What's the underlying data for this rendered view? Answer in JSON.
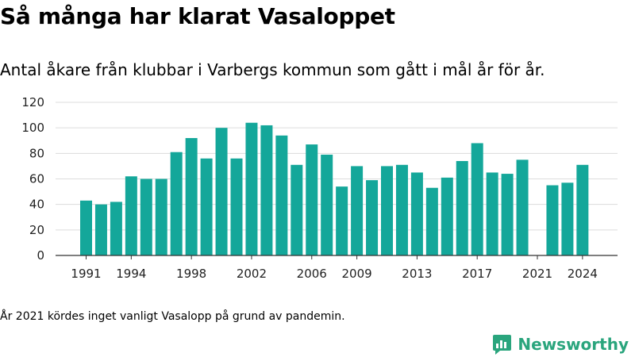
{
  "title": "Så många har klarat Vasaloppet",
  "subtitle": "Antal åkare från klubbar i Varbergs kommun som gått i mål år för år.",
  "footnote": "År 2021 kördes inget vanligt Vasalopp på grund av pandemin.",
  "brand": {
    "name": "Newsworthy",
    "icon": "newsworthy-logo-icon",
    "color": "#2aa57d"
  },
  "chart_data": {
    "type": "bar",
    "bar_color": "#14a79a",
    "grid": true,
    "ylim": [
      0,
      120
    ],
    "yticks": [
      0,
      20,
      40,
      60,
      80,
      100,
      120
    ],
    "xticks": [
      1991,
      1994,
      1998,
      2002,
      2006,
      2009,
      2013,
      2017,
      2021,
      2024
    ],
    "x": [
      1991,
      1992,
      1993,
      1994,
      1995,
      1996,
      1997,
      1998,
      1999,
      2000,
      2001,
      2002,
      2003,
      2004,
      2005,
      2006,
      2007,
      2008,
      2009,
      2010,
      2011,
      2012,
      2013,
      2014,
      2015,
      2016,
      2017,
      2018,
      2019,
      2020,
      2021,
      2022,
      2023,
      2024
    ],
    "values": [
      43,
      40,
      42,
      62,
      60,
      60,
      81,
      92,
      76,
      100,
      76,
      104,
      102,
      94,
      71,
      87,
      79,
      54,
      70,
      59,
      70,
      71,
      65,
      53,
      61,
      74,
      88,
      65,
      64,
      75,
      null,
      55,
      57,
      71
    ]
  }
}
